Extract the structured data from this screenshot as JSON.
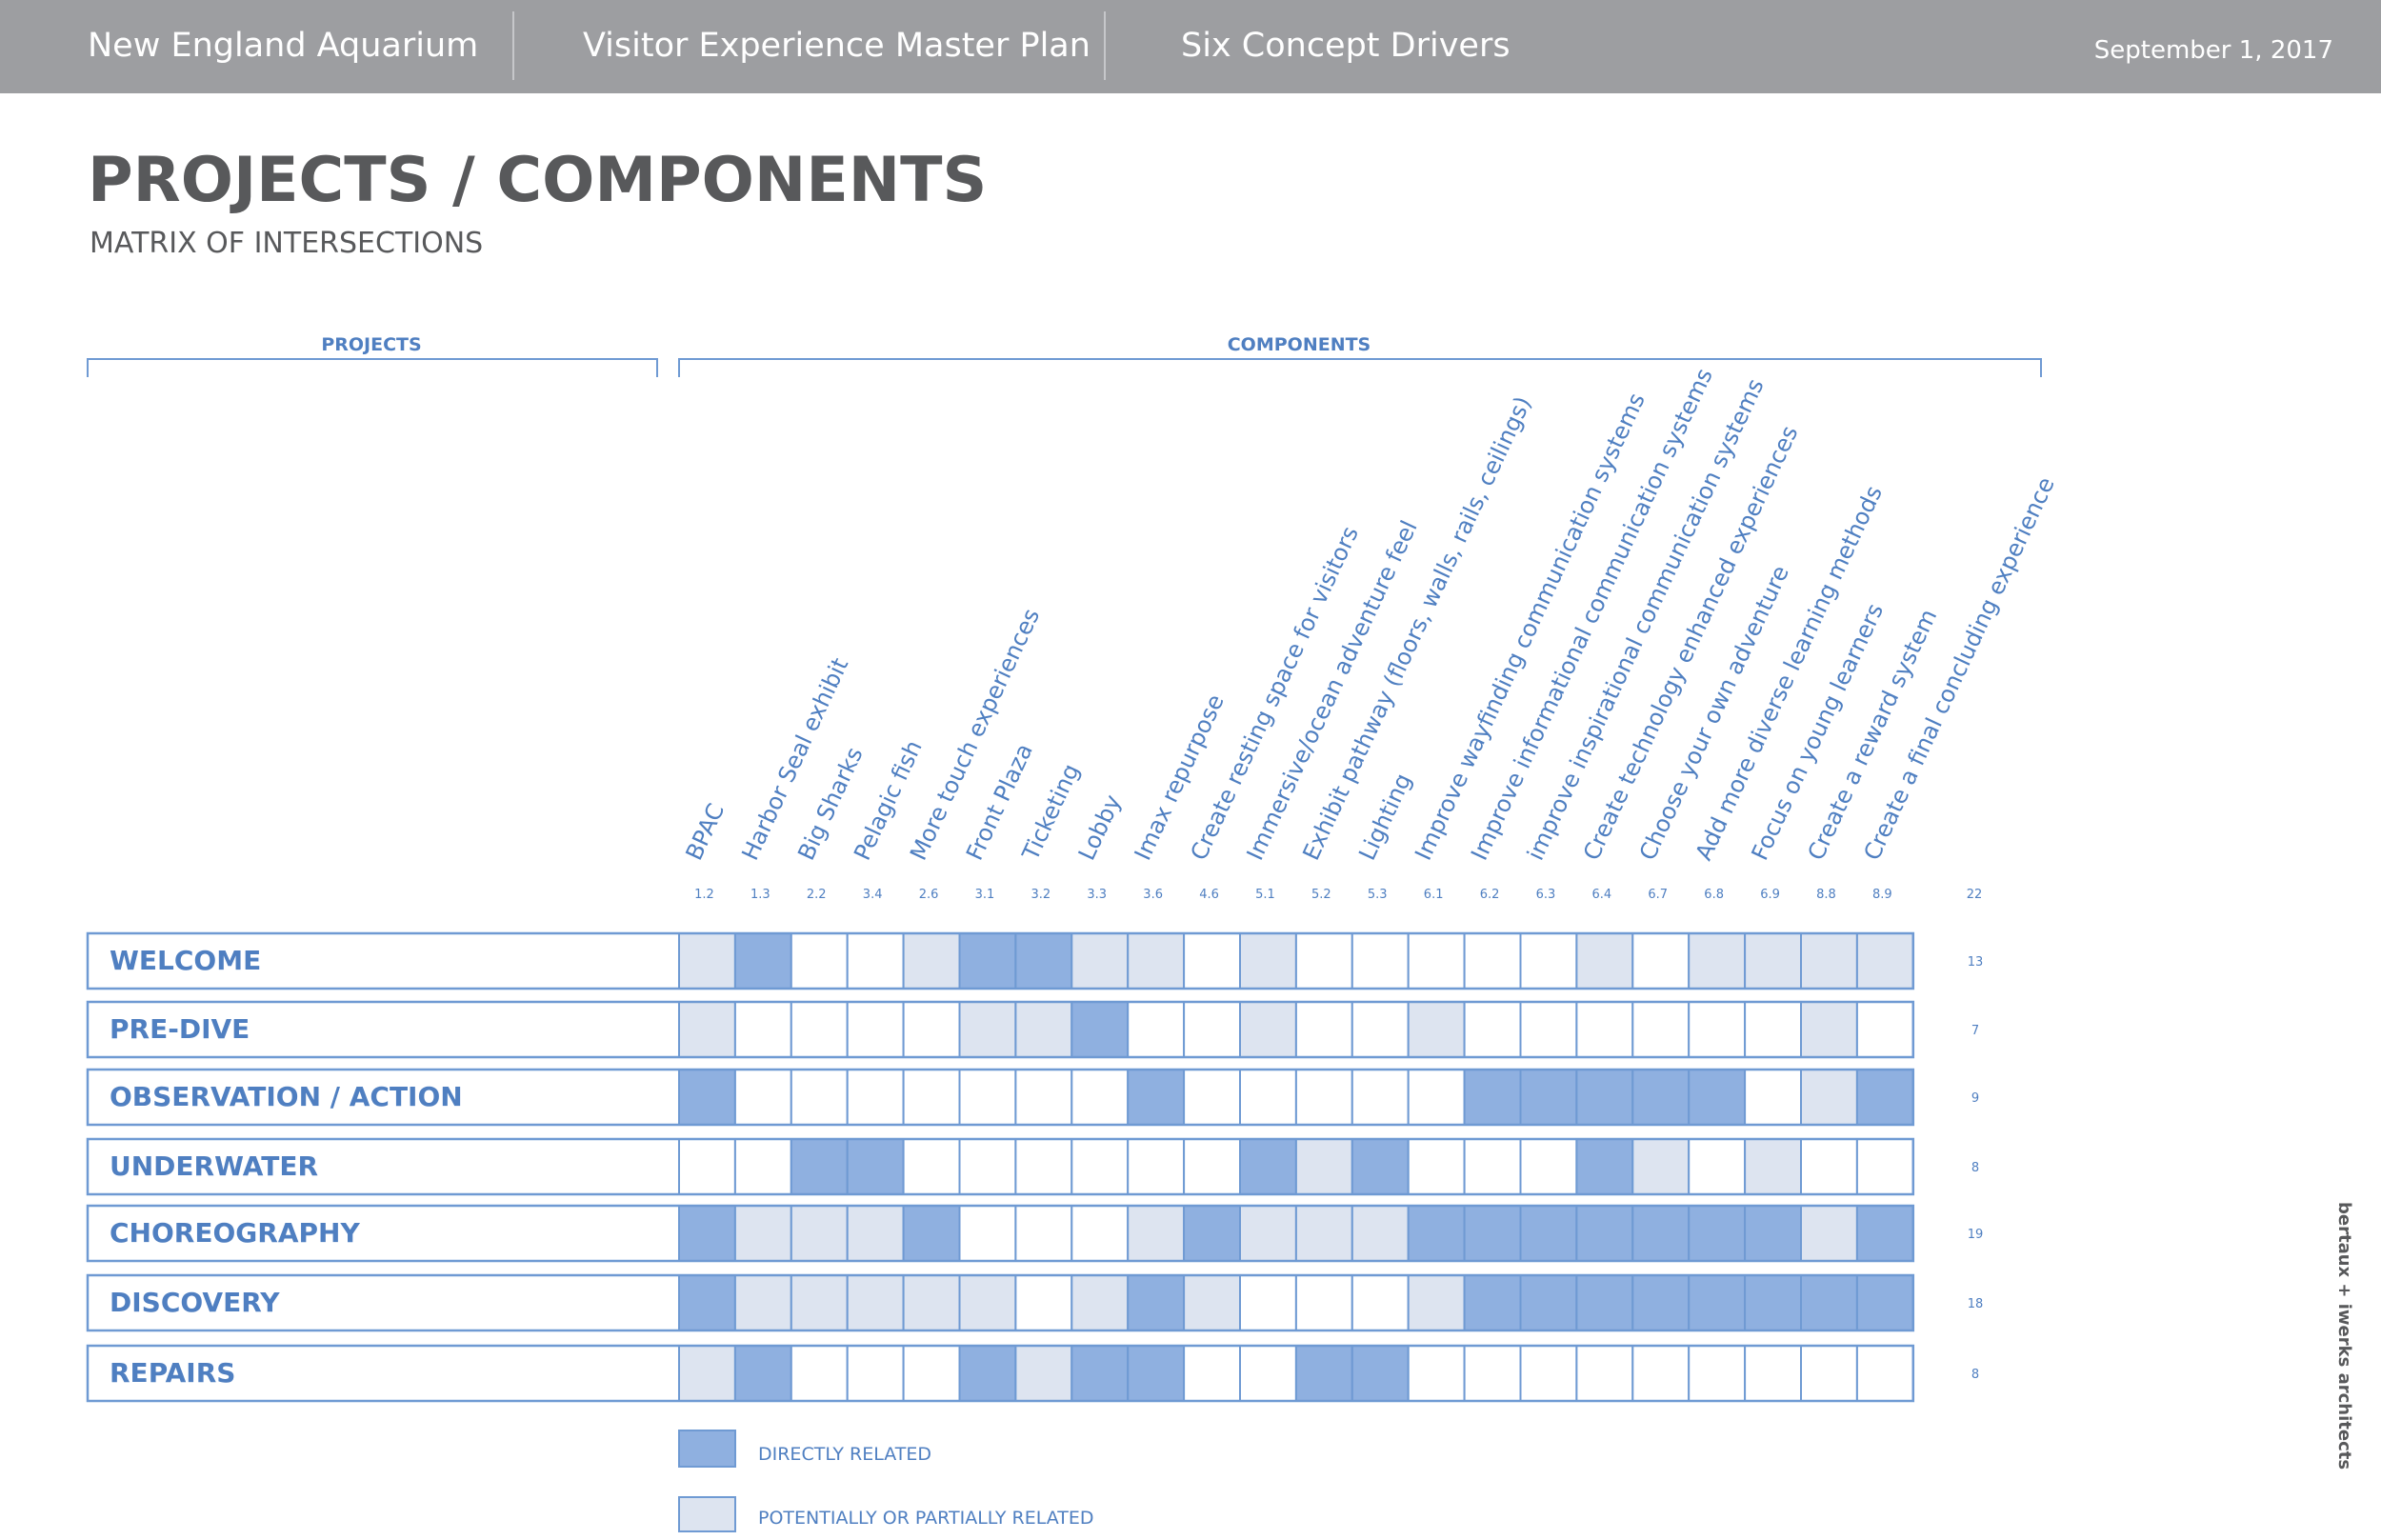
{
  "header": {
    "org": "New England Aquarium",
    "plan": "Visitor Experience Master Plan",
    "section": "Six Concept Drivers",
    "date": "September 1, 2017"
  },
  "page": {
    "title": "PROJECTS / COMPONENTS",
    "subtitle": "MATRIX OF INTERSECTIONS"
  },
  "groups": {
    "projects_label": "PROJECTS",
    "components_label": "COMPONENTS"
  },
  "components": [
    {
      "name": "BPAC",
      "code": "1.2"
    },
    {
      "name": "Harbor Seal exhibit",
      "code": "1.3"
    },
    {
      "name": "Big Sharks",
      "code": "2.2"
    },
    {
      "name": "Pelagic fish",
      "code": "3.4"
    },
    {
      "name": "More touch experiences",
      "code": "2.6"
    },
    {
      "name": "Front Plaza",
      "code": "3.1"
    },
    {
      "name": "Ticketing",
      "code": "3.2"
    },
    {
      "name": "Lobby",
      "code": "3.3"
    },
    {
      "name": "Imax repurpose",
      "code": "3.6"
    },
    {
      "name": "Create resting space for visitors",
      "code": "4.6"
    },
    {
      "name": "Immersive/ocean adventure feel",
      "code": "5.1"
    },
    {
      "name": "Exhibit pathway (floors, walls, rails, ceilings)",
      "code": "5.2"
    },
    {
      "name": "Lighting",
      "code": "5.3"
    },
    {
      "name": "Improve wayfinding communication systems",
      "code": "6.1"
    },
    {
      "name": "Improve informational communication systems",
      "code": "6.2"
    },
    {
      "name": "improve inspirational communication systems",
      "code": "6.3"
    },
    {
      "name": "Create technology enhanced experiences",
      "code": "6.4"
    },
    {
      "name": "Choose your own adventure",
      "code": "6.7"
    },
    {
      "name": "Add more diverse learning methods",
      "code": "6.8"
    },
    {
      "name": "Focus on young learners",
      "code": "6.9"
    },
    {
      "name": "Create a reward system",
      "code": "8.8"
    },
    {
      "name": "Create a final concluding experience",
      "code": "8.9"
    }
  ],
  "components_total": "22",
  "projects": [
    {
      "name": "WELCOME",
      "count": "13",
      "cells": [
        1,
        2,
        0,
        0,
        1,
        2,
        2,
        1,
        1,
        0,
        1,
        0,
        0,
        0,
        0,
        0,
        1,
        0,
        1,
        1,
        1,
        1
      ]
    },
    {
      "name": "PRE-DIVE",
      "count": "7",
      "cells": [
        1,
        0,
        0,
        0,
        0,
        1,
        1,
        2,
        0,
        0,
        1,
        0,
        0,
        1,
        0,
        0,
        0,
        0,
        0,
        0,
        1,
        0
      ]
    },
    {
      "name": "OBSERVATION / ACTION",
      "count": "9",
      "cells": [
        2,
        0,
        0,
        0,
        0,
        0,
        0,
        0,
        2,
        0,
        0,
        0,
        0,
        0,
        2,
        2,
        2,
        2,
        2,
        0,
        1,
        2
      ]
    },
    {
      "name": "UNDERWATER",
      "count": "8",
      "cells": [
        0,
        0,
        2,
        2,
        0,
        0,
        0,
        0,
        0,
        0,
        2,
        1,
        2,
        0,
        0,
        0,
        2,
        1,
        0,
        1,
        0,
        0
      ]
    },
    {
      "name": "CHOREOGRAPHY",
      "count": "19",
      "cells": [
        2,
        1,
        1,
        1,
        2,
        0,
        0,
        0,
        1,
        2,
        1,
        1,
        1,
        2,
        2,
        2,
        2,
        2,
        2,
        2,
        1,
        2
      ]
    },
    {
      "name": "DISCOVERY",
      "count": "18",
      "cells": [
        2,
        1,
        1,
        1,
        1,
        1,
        0,
        1,
        2,
        1,
        0,
        0,
        0,
        1,
        2,
        2,
        2,
        2,
        2,
        2,
        2,
        2
      ]
    },
    {
      "name": "REPAIRS",
      "count": "8",
      "cells": [
        1,
        2,
        0,
        0,
        0,
        2,
        1,
        2,
        2,
        0,
        0,
        2,
        2,
        0,
        0,
        0,
        0,
        0,
        0,
        0,
        0,
        0
      ]
    }
  ],
  "legend": {
    "direct": "DIRECTLY RELATED",
    "partial": "POTENTIALLY OR PARTIALLY RELATED"
  },
  "colors": {
    "header_bg": "#9d9ea1",
    "title": "#58595b",
    "blue_text": "#4f7fc1",
    "border": "#6f9ad3",
    "direct": "#8fb0e0",
    "partial": "#dde4f0"
  },
  "credit": "bertaux + iwerks architects"
}
